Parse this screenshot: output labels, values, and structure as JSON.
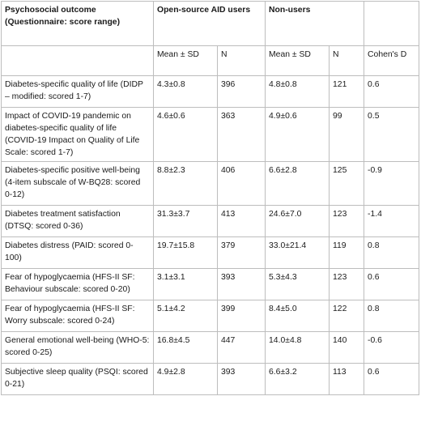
{
  "table": {
    "header": {
      "outcome": "Psychosocial outcome (Questionnaire: score range)",
      "group1": "Open-source AID users",
      "group2": "Non-users",
      "mean_sd": "Mean ± SD",
      "n": "N",
      "cohens_d": "Cohen's D"
    },
    "rows": [
      {
        "outcome": "Diabetes-specific quality of life (DIDP – modified: scored 1-7)",
        "aid_mean": "4.3±0.8",
        "aid_n": "396",
        "non_mean": "4.8±0.8",
        "non_n": "121",
        "d": "0.6"
      },
      {
        "outcome": "Impact of COVID-19 pandemic on diabetes-specific quality of life (COVID-19 Impact on Quality of Life Scale: scored 1-7)",
        "aid_mean": "4.6±0.6",
        "aid_n": "363",
        "non_mean": "4.9±0.6",
        "non_n": "99",
        "d": "0.5"
      },
      {
        "outcome": "Diabetes-specific positive well-being (4-item subscale of W-BQ28: scored 0-12)",
        "aid_mean": "8.8±2.3",
        "aid_n": "406",
        "non_mean": "6.6±2.8",
        "non_n": "125",
        "d": "-0.9"
      },
      {
        "outcome": "Diabetes treatment satisfaction (DTSQ: scored 0-36)",
        "aid_mean": "31.3±3.7",
        "aid_n": "413",
        "non_mean": "24.6±7.0",
        "non_n": "123",
        "d": "-1.4"
      },
      {
        "outcome": "Diabetes distress (PAID: scored 0-100)",
        "aid_mean": "19.7±15.8",
        "aid_n": "379",
        "non_mean": "33.0±21.4",
        "non_n": "119",
        "d": "0.8"
      },
      {
        "outcome": "Fear of hypoglycaemia (HFS-II SF: Behaviour subscale: scored 0-20)",
        "aid_mean": "3.1±3.1",
        "aid_n": "393",
        "non_mean": "5.3±4.3",
        "non_n": "123",
        "d": "0.6"
      },
      {
        "outcome": "Fear of hypoglycaemia (HFS-II SF: Worry subscale: scored 0-24)",
        "aid_mean": "5.1±4.2",
        "aid_n": "399",
        "non_mean": "8.4±5.0",
        "non_n": "122",
        "d": "0.8"
      },
      {
        "outcome": "General emotional well-being (WHO-5: scored 0-25)",
        "aid_mean": "16.8±4.5",
        "aid_n": "447",
        "non_mean": "14.0±4.8",
        "non_n": "140",
        "d": "-0.6"
      },
      {
        "outcome": "Subjective sleep quality (PSQI: scored 0-21)",
        "aid_mean": "4.9±2.8",
        "aid_n": "393",
        "non_mean": "6.6±3.2",
        "non_n": "113",
        "d": "0.6"
      }
    ]
  }
}
